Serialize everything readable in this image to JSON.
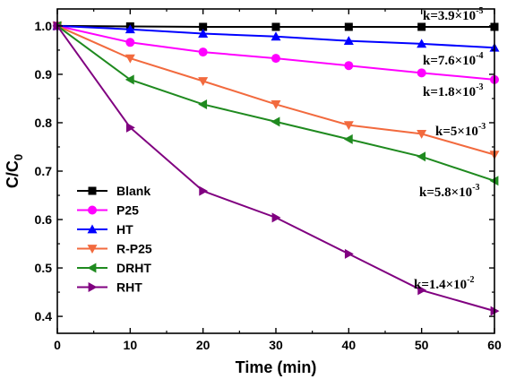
{
  "chart_data": {
    "type": "line",
    "xlabel": "Time (min)",
    "ylabel_main": "C/C",
    "ylabel_sub": "0",
    "xlim": [
      0,
      60
    ],
    "ylim": [
      0.4,
      1.0
    ],
    "xticks": [
      "0",
      "10",
      "20",
      "30",
      "40",
      "50",
      "60"
    ],
    "yticks": [
      "0.4",
      "0.5",
      "0.6",
      "0.7",
      "0.8",
      "0.9",
      "1.0"
    ],
    "grid": false,
    "legend_position": "bottom-left",
    "x": [
      0,
      10,
      20,
      30,
      40,
      50,
      60
    ],
    "series": [
      {
        "name": "Blank",
        "color": "#000000",
        "marker": "square",
        "values": [
          1.0,
          0.999,
          0.998,
          0.998,
          0.998,
          0.998,
          0.998
        ],
        "k_base": "k=3.9×10",
        "k_exp": "-5"
      },
      {
        "name": "P25",
        "color": "#ff00ff",
        "marker": "circle",
        "values": [
          1.0,
          0.966,
          0.946,
          0.933,
          0.918,
          0.903,
          0.889
        ],
        "k_base": "k=1.8×10",
        "k_exp": "-3"
      },
      {
        "name": "HT",
        "color": "#0000ff",
        "marker": "triangle-up",
        "values": [
          1.0,
          0.993,
          0.984,
          0.978,
          0.969,
          0.963,
          0.955
        ],
        "k_base": "k=7.6×10",
        "k_exp": "-4"
      },
      {
        "name": "R-P25",
        "color": "#f26a3e",
        "marker": "triangle-down",
        "values": [
          1.0,
          0.933,
          0.886,
          0.838,
          0.795,
          0.777,
          0.734
        ],
        "k_base": "k=5×10",
        "k_exp": "-3"
      },
      {
        "name": "DRHT",
        "color": "#1f8a1f",
        "marker": "triangle-left",
        "values": [
          1.0,
          0.889,
          0.838,
          0.802,
          0.766,
          0.73,
          0.68
        ],
        "k_base": "k=5.8×10",
        "k_exp": "-3"
      },
      {
        "name": "RHT",
        "color": "#800080",
        "marker": "triangle-right",
        "values": [
          1.0,
          0.79,
          0.659,
          0.604,
          0.529,
          0.454,
          0.411
        ],
        "k_base": "k=1.4×10",
        "k_exp": "-2"
      }
    ]
  }
}
